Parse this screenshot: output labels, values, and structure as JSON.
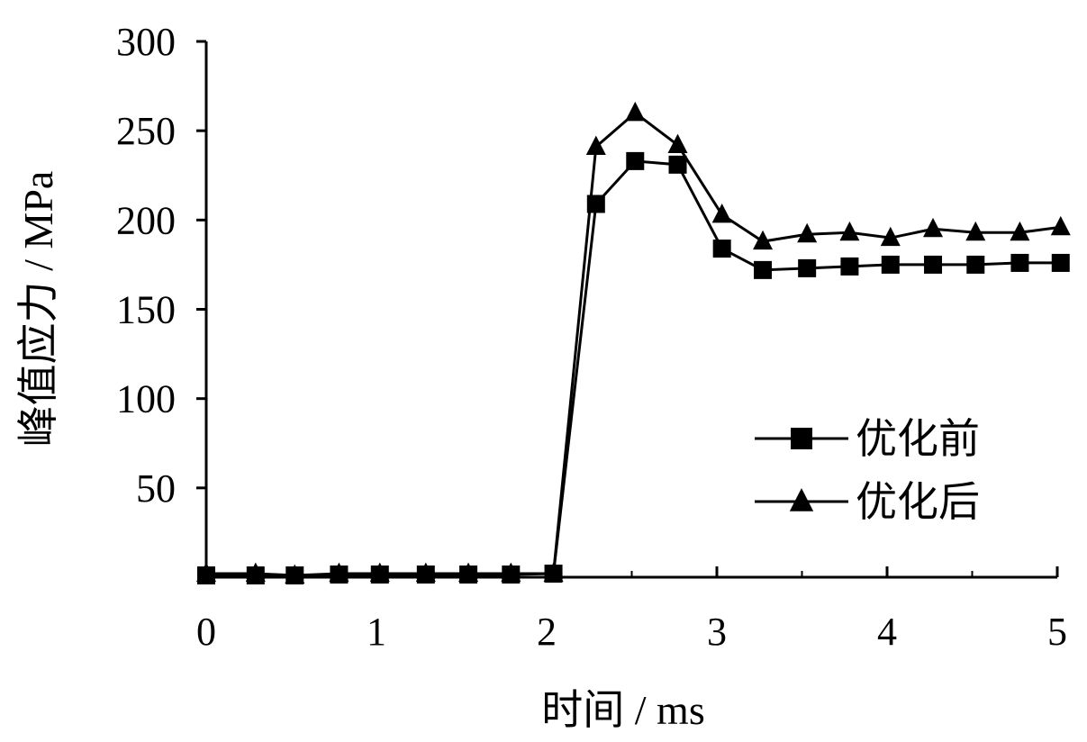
{
  "chart_data": {
    "type": "line",
    "title": "",
    "xlabel": "时间 / ms",
    "ylabel": "峰值应力 / MPa",
    "xlim": [
      0,
      5
    ],
    "ylim": [
      0,
      300
    ],
    "x_ticks": [
      "0",
      "1",
      "2",
      "3",
      "4",
      "5"
    ],
    "y_ticks": [
      "50",
      "100",
      "150",
      "200",
      "250",
      "300"
    ],
    "grid": false,
    "legend_position": "center-right",
    "series": [
      {
        "name": "优化前",
        "marker": "square",
        "x": [
          0,
          0.29,
          0.52,
          0.78,
          1.02,
          1.29,
          1.54,
          1.79,
          2.04,
          2.29,
          2.52,
          2.77,
          3.03,
          3.27,
          3.53,
          3.78,
          4.02,
          4.27,
          4.52,
          4.78,
          5.02
        ],
        "y": [
          1,
          1,
          1,
          1.5,
          1.5,
          1.5,
          1.5,
          1.5,
          2,
          209,
          233,
          231,
          184,
          172,
          173,
          174,
          175,
          175,
          175,
          176,
          176
        ]
      },
      {
        "name": "优化后",
        "marker": "triangle",
        "x": [
          0,
          0.29,
          0.52,
          0.78,
          1.02,
          1.29,
          1.54,
          1.79,
          2.04,
          2.29,
          2.52,
          2.77,
          3.03,
          3.27,
          3.53,
          3.78,
          4.02,
          4.27,
          4.52,
          4.78,
          5.02
        ],
        "y": [
          2,
          2,
          1,
          2,
          2,
          2,
          2,
          2,
          2,
          241,
          260,
          242,
          203,
          188,
          192,
          193,
          190,
          195,
          193,
          193,
          196
        ]
      }
    ]
  },
  "colors": {
    "line": "#000000",
    "background": "#ffffff"
  }
}
